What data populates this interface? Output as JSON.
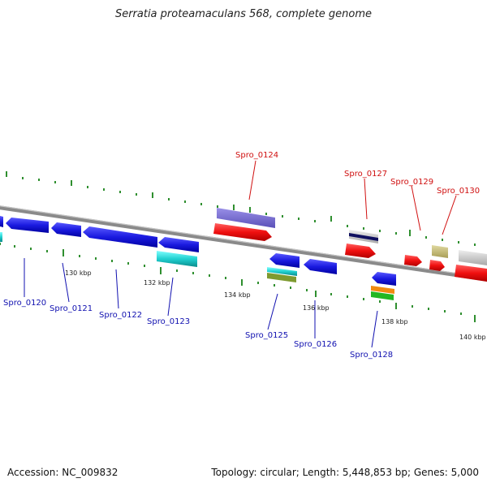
{
  "title": "Serratia proteamaculans 568, complete genome",
  "footer": {
    "accession": "Accession: NC_009832",
    "summary": "Topology: circular; Length: 5,448,853 bp; Genes: 5,000"
  },
  "colors": {
    "backbone": "#8a8a8a",
    "tick": "#2f8f2f",
    "forward_label": "#d01010",
    "reverse_label": "#1010b0"
  },
  "scale_labels": [
    "130 kbp",
    "132 kbp",
    "134 kbp",
    "136 kbp",
    "138 kbp",
    "140 kbp"
  ],
  "genes": {
    "forward": [
      "Spro_0124",
      "Spro_0127",
      "Spro_0129",
      "Spro_0130"
    ],
    "reverse": [
      "Spro_0120",
      "Spro_0121",
      "Spro_0122",
      "Spro_0123",
      "Spro_0125",
      "Spro_0126",
      "Spro_0128"
    ]
  }
}
